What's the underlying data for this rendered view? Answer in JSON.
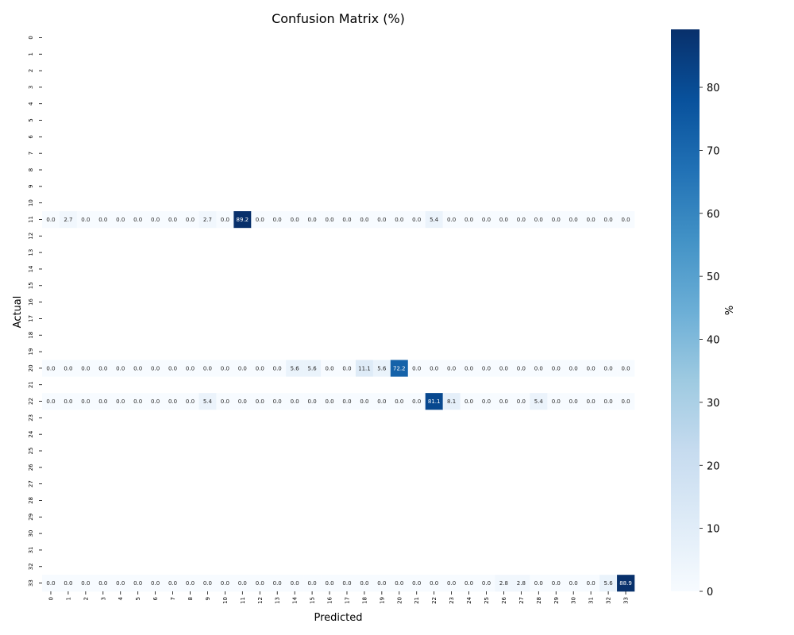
{
  "chart_data": {
    "type": "heatmap",
    "title": "Confusion Matrix (%)",
    "xlabel": "Predicted",
    "ylabel": "Actual",
    "colorbar_label": "%",
    "colorbar_range": [
      0,
      89.2
    ],
    "colorbar_ticks": [
      0,
      10,
      20,
      30,
      40,
      50,
      60,
      70,
      80
    ],
    "x_categories": [
      "0",
      "1",
      "2",
      "3",
      "4",
      "5",
      "6",
      "7",
      "8",
      "9",
      "10",
      "11",
      "12",
      "13",
      "14",
      "15",
      "16",
      "17",
      "18",
      "19",
      "20",
      "21",
      "22",
      "23",
      "24",
      "25",
      "26",
      "27",
      "28",
      "29",
      "30",
      "31",
      "32",
      "33"
    ],
    "y_categories": [
      "0",
      "1",
      "2",
      "3",
      "4",
      "5",
      "6",
      "7",
      "8",
      "9",
      "10",
      "11",
      "12",
      "13",
      "14",
      "15",
      "16",
      "17",
      "18",
      "19",
      "20",
      "21",
      "22",
      "23",
      "24",
      "25",
      "26",
      "27",
      "28",
      "29",
      "30",
      "31",
      "32",
      "33"
    ],
    "rows": [
      {
        "actual": "11",
        "values": [
          0.0,
          2.7,
          0.0,
          0.0,
          0.0,
          0.0,
          0.0,
          0.0,
          0.0,
          2.7,
          0.0,
          89.2,
          0.0,
          0.0,
          0.0,
          0.0,
          0.0,
          0.0,
          0.0,
          0.0,
          0.0,
          0.0,
          5.4,
          0.0,
          0.0,
          0.0,
          0.0,
          0.0,
          0.0,
          0.0,
          0.0,
          0.0,
          0.0,
          0.0
        ]
      },
      {
        "actual": "20",
        "values": [
          0.0,
          0.0,
          0.0,
          0.0,
          0.0,
          0.0,
          0.0,
          0.0,
          0.0,
          0.0,
          0.0,
          0.0,
          0.0,
          0.0,
          5.6,
          5.6,
          0.0,
          0.0,
          11.1,
          5.6,
          72.2,
          0.0,
          0.0,
          0.0,
          0.0,
          0.0,
          0.0,
          0.0,
          0.0,
          0.0,
          0.0,
          0.0,
          0.0,
          0.0
        ]
      },
      {
        "actual": "22",
        "values": [
          0.0,
          0.0,
          0.0,
          0.0,
          0.0,
          0.0,
          0.0,
          0.0,
          0.0,
          5.4,
          0.0,
          0.0,
          0.0,
          0.0,
          0.0,
          0.0,
          0.0,
          0.0,
          0.0,
          0.0,
          0.0,
          0.0,
          81.1,
          8.1,
          0.0,
          0.0,
          0.0,
          0.0,
          5.4,
          0.0,
          0.0,
          0.0,
          0.0,
          0.0
        ]
      },
      {
        "actual": "33",
        "values": [
          0.0,
          0.0,
          0.0,
          0.0,
          0.0,
          0.0,
          0.0,
          0.0,
          0.0,
          0.0,
          0.0,
          0.0,
          0.0,
          0.0,
          0.0,
          0.0,
          0.0,
          0.0,
          0.0,
          0.0,
          0.0,
          0.0,
          0.0,
          0.0,
          0.0,
          0.0,
          2.8,
          2.8,
          0.0,
          0.0,
          0.0,
          0.0,
          5.6,
          88.9
        ]
      }
    ]
  }
}
